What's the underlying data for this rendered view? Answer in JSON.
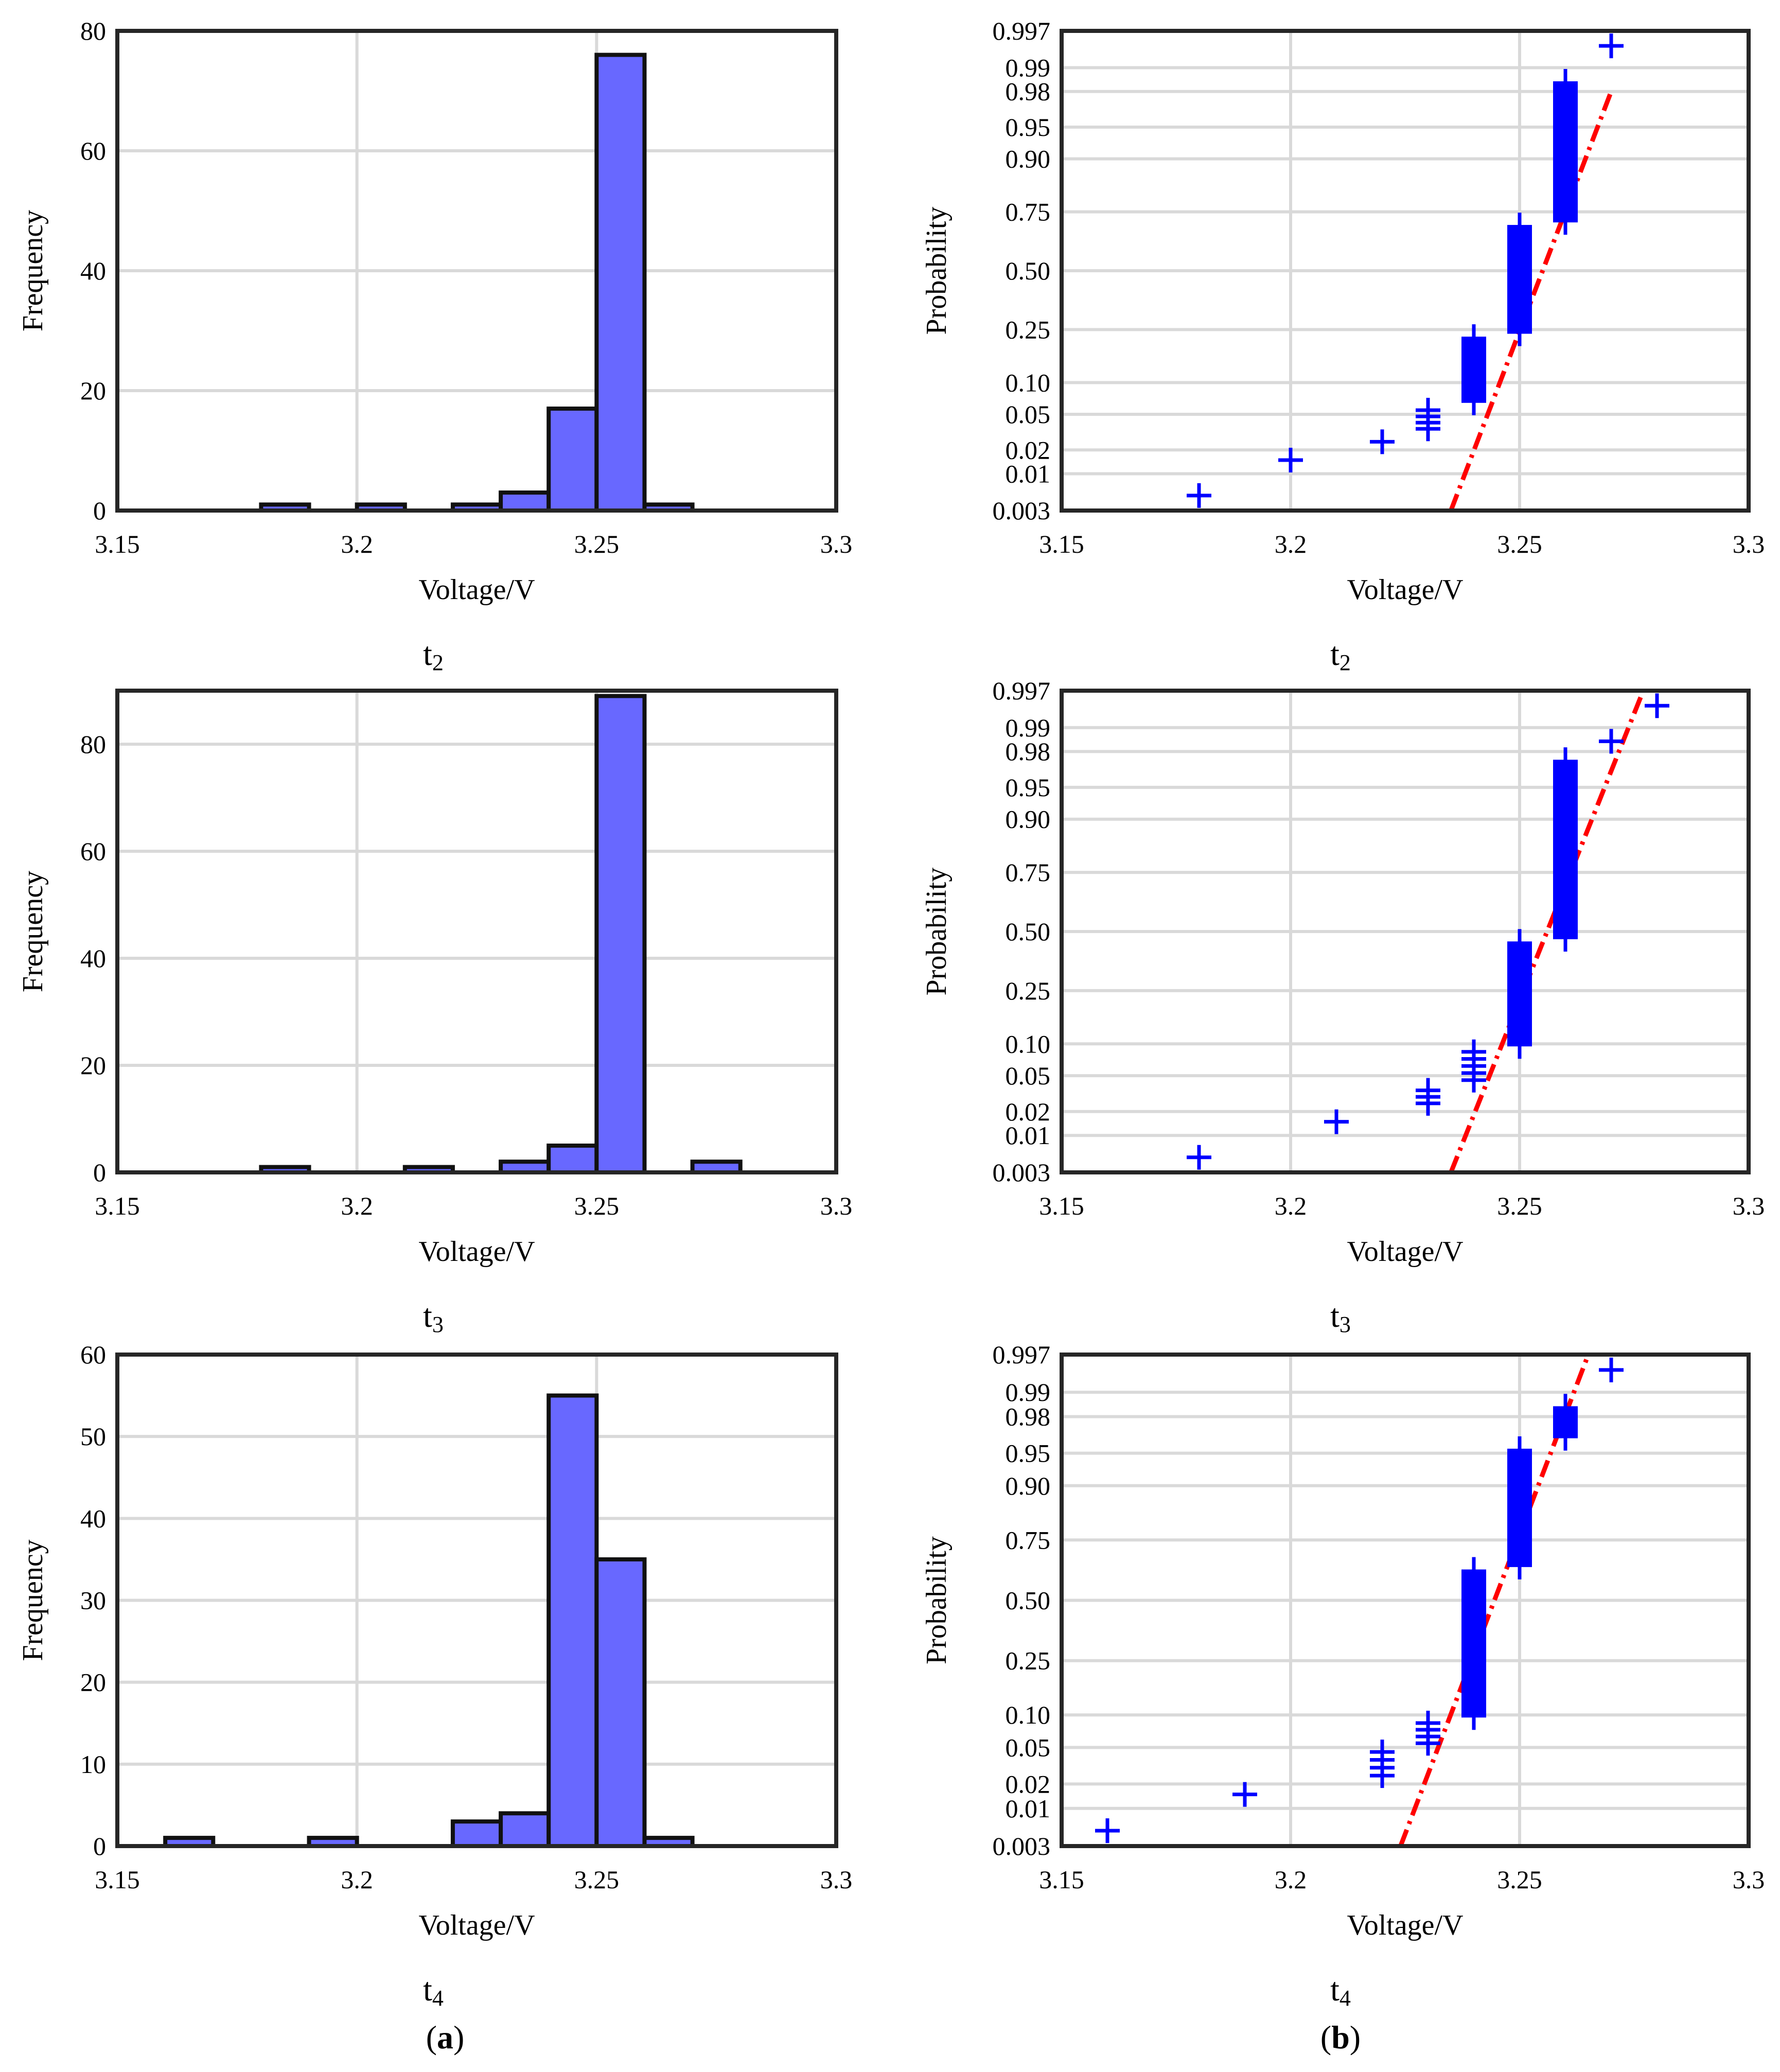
{
  "chart_data": [
    {
      "id": "hist-t2",
      "type": "bar",
      "kind": "histogram",
      "caption": "t",
      "caption_sub": "2",
      "xlabel": "Voltage/V",
      "ylabel": "Frequency",
      "xlim": [
        3.15,
        3.3
      ],
      "ylim": [
        0,
        80
      ],
      "xticks": [
        3.15,
        3.2,
        3.25,
        3.3
      ],
      "xtick_labels": [
        "3.15",
        "3.2",
        "3.25",
        "3.3"
      ],
      "yticks": [
        0,
        20,
        40,
        60,
        80
      ],
      "ytick_labels": [
        "0",
        "20",
        "40",
        "60",
        "80"
      ],
      "bin_width": 0.01,
      "bins": [
        {
          "start": 3.18,
          "count": 1
        },
        {
          "start": 3.2,
          "count": 1
        },
        {
          "start": 3.22,
          "count": 1
        },
        {
          "start": 3.23,
          "count": 3
        },
        {
          "start": 3.24,
          "count": 17
        },
        {
          "start": 3.25,
          "count": 76
        },
        {
          "start": 3.26,
          "count": 1
        }
      ]
    },
    {
      "id": "prob-t2",
      "type": "scatter",
      "kind": "normal-probability",
      "caption": "t",
      "caption_sub": "2",
      "xlabel": "Voltage/V",
      "ylabel": "Probability",
      "xlim": [
        3.15,
        3.3
      ],
      "xticks": [
        3.15,
        3.2,
        3.25,
        3.3
      ],
      "xtick_labels": [
        "3.15",
        "3.2",
        "3.25",
        "3.3"
      ],
      "yticks": [
        0.003,
        0.01,
        0.02,
        0.05,
        0.1,
        0.25,
        0.5,
        0.75,
        0.9,
        0.95,
        0.98,
        0.99,
        0.997
      ],
      "ytick_labels": [
        "0.003",
        "0.01",
        "0.02",
        "0.05",
        "0.10",
        "0.25",
        "0.50",
        "0.75",
        "0.90",
        "0.95",
        "0.98",
        "0.99",
        "0.997"
      ],
      "groups": [
        {
          "x": 3.18,
          "p_low": 0.005,
          "p_high": 0.005
        },
        {
          "x": 3.2,
          "p_low": 0.015,
          "p_high": 0.015
        },
        {
          "x": 3.22,
          "p_low": 0.025,
          "p_high": 0.025
        },
        {
          "x": 3.23,
          "p_low": 0.035,
          "p_high": 0.055
        },
        {
          "x": 3.24,
          "p_low": 0.065,
          "p_high": 0.225
        },
        {
          "x": 3.25,
          "p_low": 0.235,
          "p_high": 0.7
        },
        {
          "x": 3.26,
          "p_low": 0.71,
          "p_high": 0.985
        },
        {
          "x": 3.27,
          "p_low": 0.995,
          "p_high": 0.995
        }
      ],
      "fit_line": {
        "x": [
          3.235,
          3.27
        ],
        "p": [
          0.003,
          0.98
        ]
      }
    },
    {
      "id": "hist-t3",
      "type": "bar",
      "kind": "histogram",
      "caption": "t",
      "caption_sub": "3",
      "xlabel": "Voltage/V",
      "ylabel": "Frequency",
      "xlim": [
        3.15,
        3.3
      ],
      "ylim": [
        0,
        90
      ],
      "xticks": [
        3.15,
        3.2,
        3.25,
        3.3
      ],
      "xtick_labels": [
        "3.15",
        "3.2",
        "3.25",
        "3.3"
      ],
      "yticks": [
        0,
        20,
        40,
        60,
        80
      ],
      "ytick_labels": [
        "0",
        "20",
        "40",
        "60",
        "80"
      ],
      "bin_width": 0.01,
      "bins": [
        {
          "start": 3.18,
          "count": 1
        },
        {
          "start": 3.21,
          "count": 1
        },
        {
          "start": 3.23,
          "count": 2
        },
        {
          "start": 3.24,
          "count": 5
        },
        {
          "start": 3.25,
          "count": 89
        },
        {
          "start": 3.27,
          "count": 2
        }
      ]
    },
    {
      "id": "prob-t3",
      "type": "scatter",
      "kind": "normal-probability",
      "caption": "t",
      "caption_sub": "3",
      "xlabel": "Voltage/V",
      "ylabel": "Probability",
      "xlim": [
        3.15,
        3.3
      ],
      "xticks": [
        3.15,
        3.2,
        3.25,
        3.3
      ],
      "xtick_labels": [
        "3.15",
        "3.2",
        "3.25",
        "3.3"
      ],
      "yticks": [
        0.003,
        0.01,
        0.02,
        0.05,
        0.1,
        0.25,
        0.5,
        0.75,
        0.9,
        0.95,
        0.98,
        0.99,
        0.997
      ],
      "ytick_labels": [
        "0.003",
        "0.01",
        "0.02",
        "0.05",
        "0.10",
        "0.25",
        "0.50",
        "0.75",
        "0.90",
        "0.95",
        "0.98",
        "0.99",
        "0.997"
      ],
      "groups": [
        {
          "x": 3.18,
          "p_low": 0.005,
          "p_high": 0.005
        },
        {
          "x": 3.21,
          "p_low": 0.015,
          "p_high": 0.015
        },
        {
          "x": 3.23,
          "p_low": 0.025,
          "p_high": 0.035
        },
        {
          "x": 3.24,
          "p_low": 0.045,
          "p_high": 0.085
        },
        {
          "x": 3.25,
          "p_low": 0.095,
          "p_high": 0.455
        },
        {
          "x": 3.26,
          "p_low": 0.465,
          "p_high": 0.975
        },
        {
          "x": 3.27,
          "p_low": 0.985,
          "p_high": 0.985
        },
        {
          "x": 3.28,
          "p_low": 0.995,
          "p_high": 0.995
        }
      ],
      "fit_line": {
        "x": [
          3.235,
          3.277
        ],
        "p": [
          0.003,
          0.997
        ]
      }
    },
    {
      "id": "hist-t4",
      "type": "bar",
      "kind": "histogram",
      "caption": "t",
      "caption_sub": "4",
      "xlabel": "Voltage/V",
      "ylabel": "Frequency",
      "xlim": [
        3.15,
        3.3
      ],
      "ylim": [
        0,
        60
      ],
      "xticks": [
        3.15,
        3.2,
        3.25,
        3.3
      ],
      "xtick_labels": [
        "3.15",
        "3.2",
        "3.25",
        "3.3"
      ],
      "yticks": [
        0,
        10,
        20,
        30,
        40,
        50,
        60
      ],
      "ytick_labels": [
        "0",
        "10",
        "20",
        "30",
        "40",
        "50",
        "60"
      ],
      "bin_width": 0.01,
      "bins": [
        {
          "start": 3.16,
          "count": 1
        },
        {
          "start": 3.19,
          "count": 1
        },
        {
          "start": 3.22,
          "count": 3
        },
        {
          "start": 3.23,
          "count": 4
        },
        {
          "start": 3.24,
          "count": 55
        },
        {
          "start": 3.25,
          "count": 35
        },
        {
          "start": 3.26,
          "count": 1
        }
      ]
    },
    {
      "id": "prob-t4",
      "type": "scatter",
      "kind": "normal-probability",
      "caption": "t",
      "caption_sub": "4",
      "xlabel": "Voltage/V",
      "ylabel": "Probability",
      "xlim": [
        3.15,
        3.3
      ],
      "xticks": [
        3.15,
        3.2,
        3.25,
        3.3
      ],
      "xtick_labels": [
        "3.15",
        "3.2",
        "3.25",
        "3.3"
      ],
      "yticks": [
        0.003,
        0.01,
        0.02,
        0.05,
        0.1,
        0.25,
        0.5,
        0.75,
        0.9,
        0.95,
        0.98,
        0.99,
        0.997
      ],
      "ytick_labels": [
        "0.003",
        "0.01",
        "0.02",
        "0.05",
        "0.10",
        "0.25",
        "0.50",
        "0.75",
        "0.90",
        "0.95",
        "0.98",
        "0.99",
        "0.997"
      ],
      "groups": [
        {
          "x": 3.16,
          "p_low": 0.005,
          "p_high": 0.005
        },
        {
          "x": 3.19,
          "p_low": 0.015,
          "p_high": 0.015
        },
        {
          "x": 3.22,
          "p_low": 0.025,
          "p_high": 0.045
        },
        {
          "x": 3.23,
          "p_low": 0.055,
          "p_high": 0.085
        },
        {
          "x": 3.24,
          "p_low": 0.095,
          "p_high": 0.635
        },
        {
          "x": 3.25,
          "p_low": 0.645,
          "p_high": 0.955
        },
        {
          "x": 3.26,
          "p_low": 0.965,
          "p_high": 0.985
        },
        {
          "x": 3.27,
          "p_low": 0.995,
          "p_high": 0.995
        }
      ],
      "fit_line": {
        "x": [
          3.224,
          3.265
        ],
        "p": [
          0.003,
          0.997
        ]
      }
    }
  ],
  "panel_labels": {
    "a": {
      "open": "(",
      "letter": "a",
      "close": ")"
    },
    "b": {
      "open": "(",
      "letter": "b",
      "close": ")"
    }
  },
  "colors": {
    "bar_fill": "#6868ff",
    "marker": "#0000ff",
    "fit_line": "#ff0000",
    "grid": "#d9d9d9"
  }
}
